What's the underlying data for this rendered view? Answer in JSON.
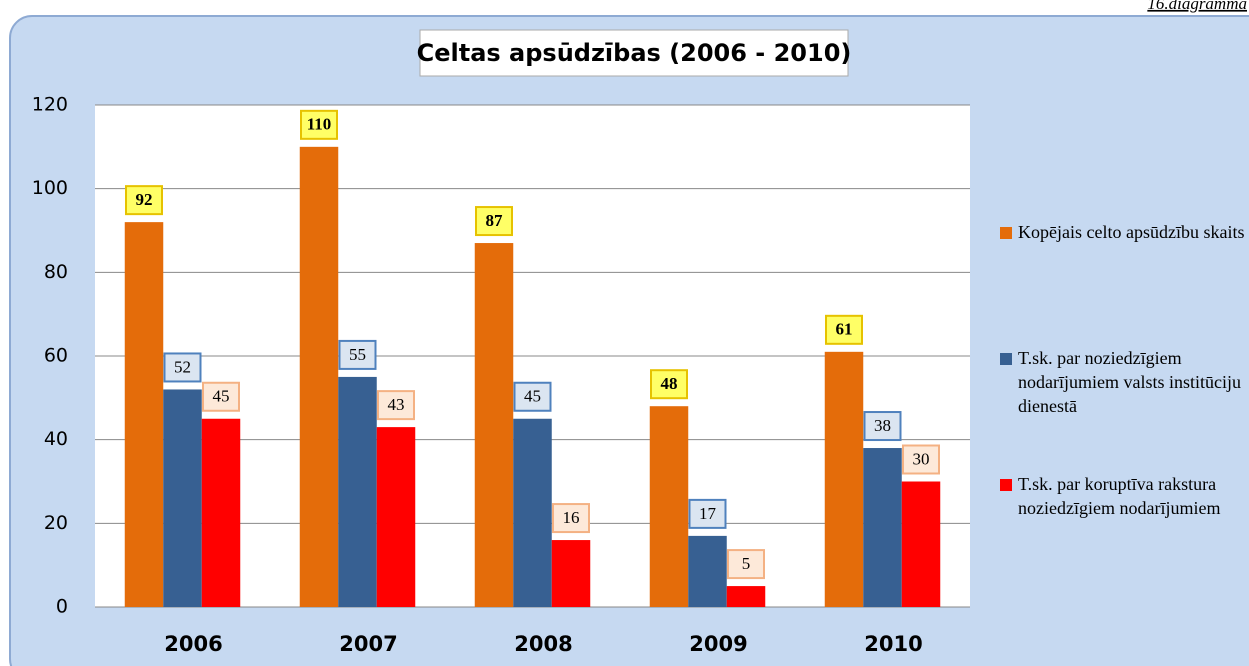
{
  "caption": "16.diagramma",
  "chart_data": {
    "type": "bar",
    "title": "Celtas apsūdzības (2006 - 2010)",
    "categories": [
      "2006",
      "2007",
      "2008",
      "2009",
      "2010"
    ],
    "series": [
      {
        "name": "Kopējais celto apsūdzību skaits",
        "color": "#e46c0a",
        "values": [
          92,
          110,
          87,
          48,
          61
        ]
      },
      {
        "name": "T.sk. par noziedzīgiem nodarījumiem valsts institūciju dienestā",
        "color": "#376092",
        "values": [
          52,
          55,
          45,
          17,
          38
        ]
      },
      {
        "name": "T.sk. par koruptīva rakstura noziedzīgiem nodarījumiem",
        "color": "#ff0000",
        "values": [
          45,
          43,
          16,
          5,
          30
        ]
      }
    ],
    "ylim": [
      0,
      120
    ],
    "yticks": [
      0,
      20,
      40,
      60,
      80,
      100,
      120
    ],
    "grid": true,
    "legend": "right"
  }
}
